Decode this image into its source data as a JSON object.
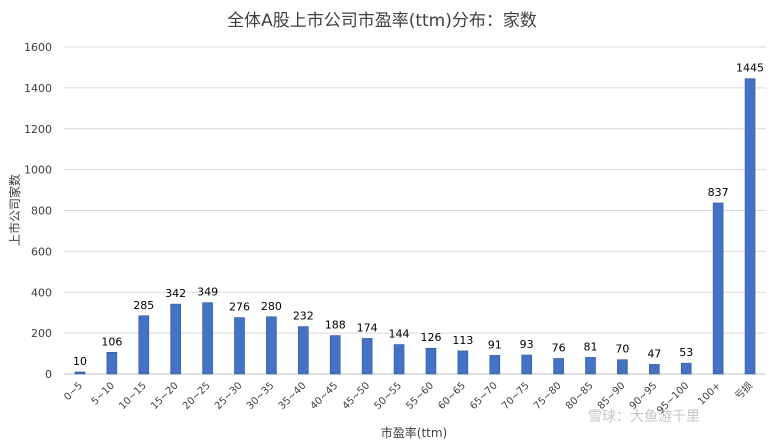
{
  "chart_data": {
    "type": "bar",
    "title": "全体A股上市公司市盈率(ttm)分布：家数",
    "xlabel": "市盈率(ttm)",
    "ylabel": "上市公司家数",
    "ylim": [
      0,
      1600
    ],
    "yticks": [
      0,
      200,
      400,
      600,
      800,
      1000,
      1200,
      1400,
      1600
    ],
    "grid": true,
    "legend": "none",
    "bar_color": "#4472C4",
    "categories": [
      "0~5",
      "5~10",
      "10~15",
      "15~20",
      "20~25",
      "25~30",
      "30~35",
      "35~40",
      "40~45",
      "45~50",
      "50~55",
      "55~60",
      "60~65",
      "65~70",
      "70~75",
      "75~80",
      "80~85",
      "85~90",
      "90~95",
      "95~100",
      "100+",
      "亏损"
    ],
    "values": [
      10,
      106,
      285,
      342,
      349,
      276,
      280,
      232,
      188,
      174,
      144,
      126,
      113,
      91,
      93,
      76,
      81,
      70,
      47,
      53,
      837,
      1445
    ]
  },
  "watermark": {
    "text": "雪球：大鱼游千里"
  }
}
